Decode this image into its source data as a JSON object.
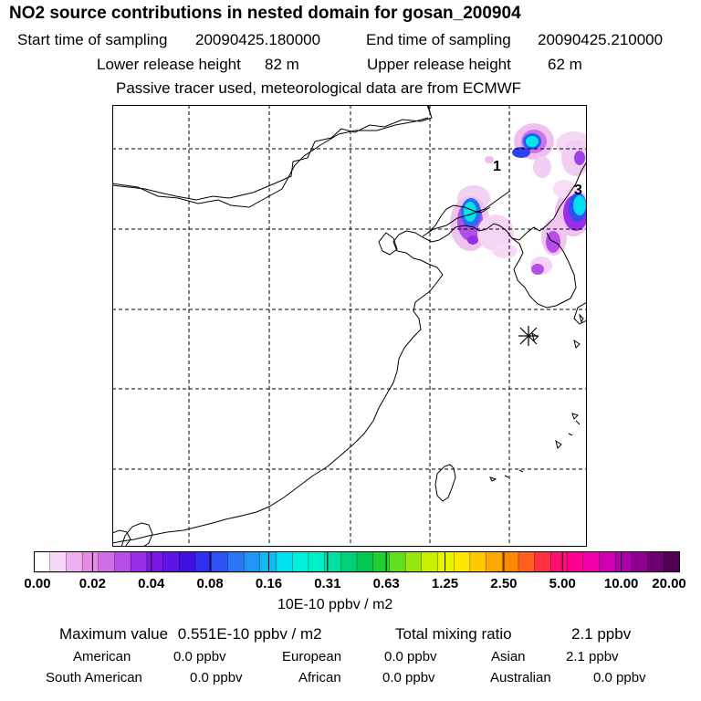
{
  "header": {
    "title": "NO2 source contributions in nested domain for gosan_200904",
    "start_label": "Start time of sampling",
    "start_value": "20090425.180000",
    "end_label": "End time of sampling",
    "end_value": "20090425.210000",
    "lower_label": "Lower release height",
    "lower_value": "82 m",
    "upper_label": "Upper release height",
    "upper_value": "62 m",
    "note": "Passive tracer used, meteorological data are from ECMWF"
  },
  "map": {
    "labels": [
      "1",
      "3"
    ],
    "station_marker": "asterisk-icon"
  },
  "colorbar": {
    "ticks": [
      "0.00",
      "0.02",
      "0.04",
      "0.08",
      "0.16",
      "0.31",
      "0.63",
      "1.25",
      "2.50",
      "5.00",
      "10.00",
      "20.00"
    ],
    "unit": "10E-10 ppbv / m2",
    "colors": [
      "#ffffff",
      "#f7d6f7",
      "#efb0ef",
      "#e68be6",
      "#cf6fe6",
      "#b54de6",
      "#9a2ee6",
      "#7c18e6",
      "#5e14e6",
      "#4010e0",
      "#3030f0",
      "#2f50f5",
      "#2a76f5",
      "#1f96f5",
      "#12b8f2",
      "#00e0f0",
      "#00f0e0",
      "#00f0c8",
      "#00e0a0",
      "#00d078",
      "#00c850",
      "#20d030",
      "#60e020",
      "#98e810",
      "#c8f000",
      "#e8f400",
      "#ffe800",
      "#ffc800",
      "#ffa800",
      "#ff8800",
      "#ff6020",
      "#ff3040",
      "#ff1070",
      "#ff0090",
      "#f000a8",
      "#d000b0",
      "#b000b0",
      "#900090",
      "#700070",
      "#500050"
    ]
  },
  "summary": {
    "max_label": "Maximum value",
    "max_value": "0.551E-10 ppbv / m2",
    "total_label": "Total mixing ratio",
    "total_value": "2.1 ppbv",
    "regions": [
      {
        "name": "American",
        "value": "0.0 ppbv"
      },
      {
        "name": "European",
        "value": "0.0 ppbv"
      },
      {
        "name": "Asian",
        "value": "2.1 ppbv"
      },
      {
        "name": "South American",
        "value": "0.0 ppbv"
      },
      {
        "name": "African",
        "value": "0.0 ppbv"
      },
      {
        "name": "Australian",
        "value": "0.0 ppbv"
      }
    ]
  }
}
